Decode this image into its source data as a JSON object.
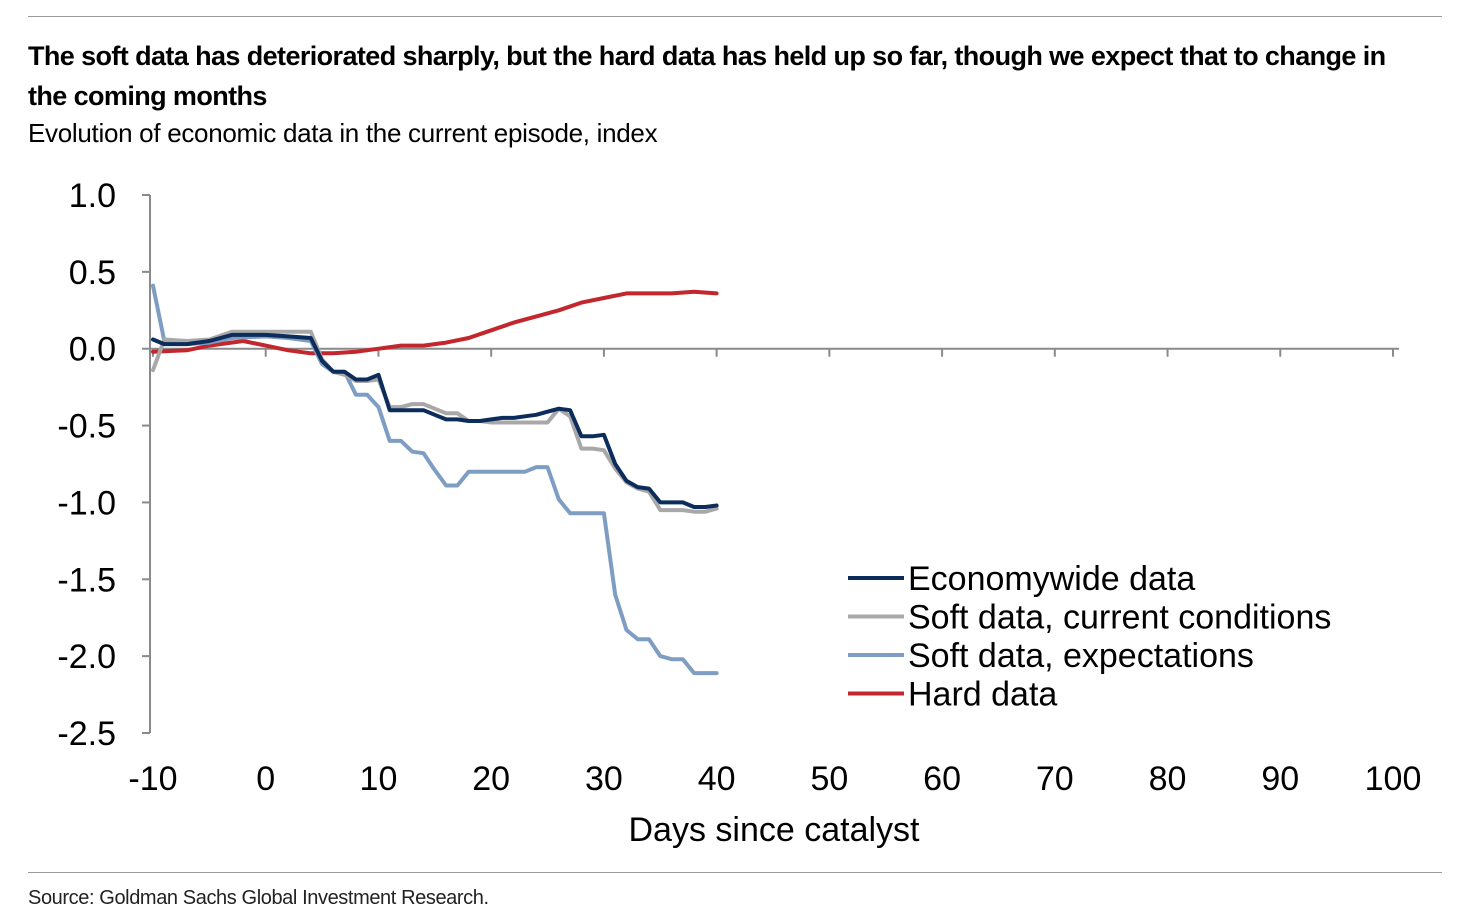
{
  "title": "The soft data has deteriorated sharply, but the hard data has held up so far, though we expect that to change in the coming months",
  "subtitle": "Evolution of economic data in the current episode, index",
  "source": "Source: Goldman Sachs Global Investment Research.",
  "chart_data": {
    "type": "line",
    "title": "The soft data has deteriorated sharply, but the hard data has held up so far, though we expect that to change in the coming months",
    "subtitle": "Evolution of economic data in the current episode, index",
    "xlabel": "Days since catalyst",
    "ylabel": "",
    "xlim": [
      -10,
      100
    ],
    "ylim": [
      -2.5,
      1.0
    ],
    "xticks": [
      -10,
      0,
      10,
      20,
      30,
      40,
      50,
      60,
      70,
      80,
      90,
      100
    ],
    "yticks": [
      1.0,
      0.5,
      0.0,
      -0.5,
      -1.0,
      -1.5,
      -2.0,
      -2.5
    ],
    "xtick_labels": [
      "-10",
      "0",
      "10",
      "20",
      "30",
      "40",
      "50",
      "60",
      "70",
      "80",
      "90",
      "100"
    ],
    "ytick_labels": [
      "1.0",
      "0.5",
      "0.0",
      "-0.5",
      "-1.0",
      "-1.5",
      "-2.0",
      "-2.5"
    ],
    "grid": false,
    "legend_position": "bottom-right",
    "series": [
      {
        "name": "Economywide data",
        "color": "#0c2d5b",
        "x": [
          -10,
          -9,
          -7,
          -5,
          -3,
          0,
          2,
          4,
          5,
          6,
          7,
          8,
          9,
          10,
          11,
          12,
          13,
          14,
          15,
          16,
          17,
          18,
          19,
          20,
          21,
          22,
          23,
          24,
          25,
          26,
          27,
          28,
          29,
          30,
          31,
          32,
          33,
          34,
          35,
          36,
          37,
          38,
          39,
          40
        ],
        "values": [
          0.06,
          0.03,
          0.03,
          0.05,
          0.09,
          0.09,
          0.08,
          0.07,
          -0.08,
          -0.15,
          -0.15,
          -0.2,
          -0.2,
          -0.17,
          -0.4,
          -0.4,
          -0.4,
          -0.4,
          -0.43,
          -0.46,
          -0.46,
          -0.47,
          -0.47,
          -0.46,
          -0.45,
          -0.45,
          -0.44,
          -0.43,
          -0.41,
          -0.39,
          -0.4,
          -0.57,
          -0.57,
          -0.56,
          -0.75,
          -0.86,
          -0.9,
          -0.91,
          -1.0,
          -1.0,
          -1.0,
          -1.03,
          -1.03,
          -1.02
        ]
      },
      {
        "name": "Soft data, current conditions",
        "color": "#a8a8a8",
        "x": [
          -10,
          -9,
          -7,
          -5,
          -3,
          0,
          2,
          4,
          5,
          6,
          7,
          8,
          9,
          10,
          11,
          12,
          13,
          14,
          15,
          16,
          17,
          18,
          19,
          20,
          21,
          22,
          23,
          24,
          25,
          26,
          27,
          28,
          29,
          30,
          31,
          32,
          33,
          34,
          35,
          36,
          37,
          38,
          39,
          40
        ],
        "values": [
          -0.14,
          0.06,
          0.05,
          0.06,
          0.11,
          0.11,
          0.11,
          0.11,
          -0.07,
          -0.15,
          -0.17,
          -0.21,
          -0.21,
          -0.2,
          -0.38,
          -0.38,
          -0.36,
          -0.36,
          -0.39,
          -0.42,
          -0.42,
          -0.47,
          -0.47,
          -0.48,
          -0.48,
          -0.48,
          -0.48,
          -0.48,
          -0.48,
          -0.39,
          -0.44,
          -0.65,
          -0.65,
          -0.66,
          -0.78,
          -0.87,
          -0.91,
          -0.93,
          -1.05,
          -1.05,
          -1.05,
          -1.06,
          -1.06,
          -1.04
        ]
      },
      {
        "name": "Soft data, expectations",
        "color": "#7e9dc3",
        "x": [
          -10,
          -9,
          -7,
          -5,
          -3,
          0,
          2,
          4,
          5,
          6,
          7,
          8,
          9,
          10,
          11,
          12,
          13,
          14,
          15,
          16,
          17,
          18,
          19,
          20,
          21,
          22,
          23,
          24,
          25,
          26,
          27,
          28,
          29,
          30,
          31,
          32,
          33,
          34,
          35,
          36,
          37,
          38,
          39,
          40
        ],
        "values": [
          0.41,
          0.05,
          0.03,
          0.04,
          0.07,
          0.08,
          0.07,
          0.05,
          -0.1,
          -0.15,
          -0.15,
          -0.3,
          -0.3,
          -0.38,
          -0.6,
          -0.6,
          -0.67,
          -0.68,
          -0.79,
          -0.89,
          -0.89,
          -0.8,
          -0.8,
          -0.8,
          -0.8,
          -0.8,
          -0.8,
          -0.77,
          -0.77,
          -0.98,
          -1.07,
          -1.07,
          -1.07,
          -1.07,
          -1.6,
          -1.83,
          -1.89,
          -1.89,
          -2.0,
          -2.02,
          -2.02,
          -2.11,
          -2.11,
          -2.11
        ]
      },
      {
        "name": "Hard data",
        "color": "#c1272d",
        "x": [
          -10,
          -7,
          -5,
          -2,
          0,
          2,
          4,
          6,
          8,
          10,
          12,
          14,
          16,
          18,
          20,
          22,
          24,
          26,
          28,
          30,
          32,
          34,
          36,
          38,
          40
        ],
        "values": [
          -0.02,
          -0.01,
          0.02,
          0.05,
          0.02,
          -0.01,
          -0.03,
          -0.03,
          -0.02,
          0.0,
          0.02,
          0.02,
          0.04,
          0.07,
          0.12,
          0.17,
          0.21,
          0.25,
          0.3,
          0.33,
          0.36,
          0.36,
          0.36,
          0.37,
          0.36
        ]
      }
    ]
  }
}
